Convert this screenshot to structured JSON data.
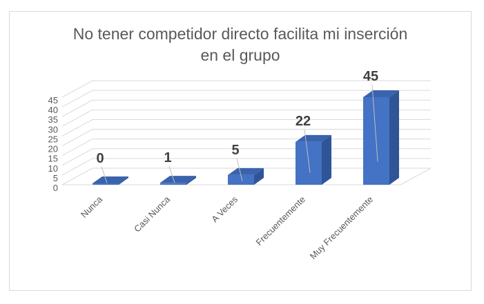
{
  "chart_data": {
    "type": "bar",
    "title": "No tener competidor directo facilita mi inserción\nen el grupo",
    "categories": [
      "Nunca",
      "Casi Nunca",
      "A Veces",
      "Frecuentemente",
      "Muy Frecuentemente"
    ],
    "values": [
      0,
      1,
      5,
      22,
      45
    ],
    "data_labels": [
      "0",
      "1",
      "5",
      "22",
      "45"
    ],
    "yticks": [
      "0",
      "5",
      "10",
      "15",
      "20",
      "25",
      "30",
      "35",
      "40",
      "45"
    ],
    "ylim": [
      0,
      45
    ],
    "grid": true,
    "legend": "none",
    "bar_color": "#4472c4",
    "bar_side_color": "#2f5597",
    "bar_top_color": "#3a63ad"
  }
}
